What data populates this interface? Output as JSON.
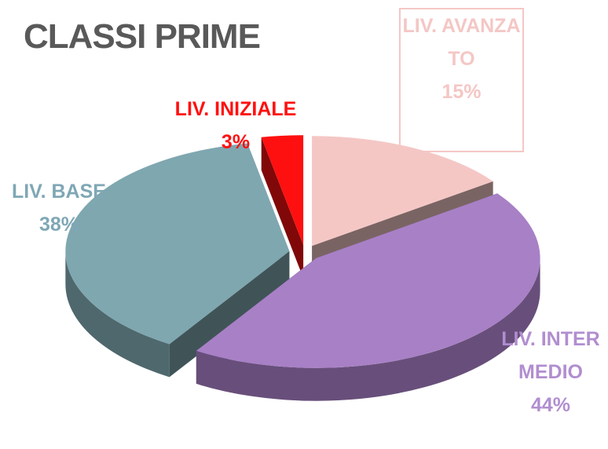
{
  "chart_data": {
    "type": "pie3d",
    "title": "CLASSI PRIME",
    "categories": [
      "LIV. AVANZATO",
      "LIV. INTERMEDIO",
      "LIV. BASE",
      "LIV. INIZIALE"
    ],
    "values": [
      15,
      44,
      38,
      3
    ],
    "value_labels": [
      "15%",
      "44%",
      "38%",
      "3%"
    ],
    "colors": [
      "#f4c7c5",
      "#a880c6",
      "#7fa7b0",
      "#ff1010"
    ]
  }
}
